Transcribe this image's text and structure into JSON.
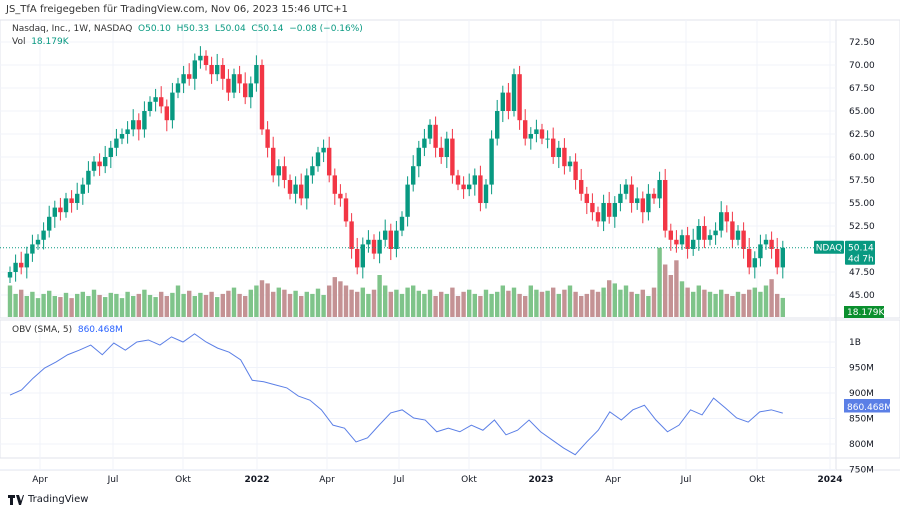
{
  "header": {
    "shared_by": "JS_TfA freigegeben für TradingView.com, Nov 06, 2023 15:46 UTC+1"
  },
  "legend": {
    "symbol": "Nasdaq, Inc., 1W, NASDAQ",
    "o": "O50.10",
    "h": "H50.33",
    "l": "L50.04",
    "c": "C50.14",
    "change": "−0.08 (−0.16%)",
    "vol_label": "Vol",
    "vol_value": "18.179K"
  },
  "obv_legend": {
    "label": "OBV (SMA, 5)",
    "value": "860.468M"
  },
  "footer": {
    "brand": "TradingView"
  },
  "colors": {
    "up": "#089981",
    "down": "#f23645",
    "vol_up": "#7fc48a",
    "vol_down": "#c49294",
    "obv": "#5b7fe6",
    "vol_badge": "#0a8f2e"
  },
  "chart_data": [
    {
      "type": "candlestick",
      "ylim": [
        43.5,
        73.5
      ],
      "price_ticks": [
        "72.50",
        "70.00",
        "67.50",
        "65.00",
        "62.50",
        "60.00",
        "57.50",
        "55.00",
        "52.50",
        "47.50",
        "45.00"
      ],
      "x_ticks": [
        "Apr",
        "Jul",
        "Okt",
        "2022",
        "Apr",
        "Jul",
        "Okt",
        "2023",
        "Apr",
        "Jul",
        "Okt",
        "2024"
      ],
      "closes": [
        47.5,
        48.5,
        48,
        49.5,
        50.5,
        51,
        52,
        53.5,
        54.5,
        54,
        55.5,
        55,
        56,
        57,
        58.5,
        59.5,
        59,
        60,
        61,
        62,
        62.5,
        63,
        64,
        63,
        65,
        66,
        66.5,
        65.5,
        64,
        67,
        68,
        69,
        68.5,
        70.5,
        71,
        70,
        69,
        70,
        68.5,
        67,
        69,
        68,
        66.5,
        68,
        70,
        63,
        61,
        58,
        59,
        57.5,
        56,
        57,
        55.5,
        58,
        59,
        60.5,
        61,
        58,
        56,
        55.5,
        53,
        50,
        48,
        50.5,
        51,
        49.5,
        51,
        52,
        50,
        52,
        53.5,
        57,
        59,
        61,
        62,
        63.5,
        61,
        60,
        62,
        58,
        57,
        56.5,
        57,
        58,
        55,
        57,
        62,
        65,
        67,
        65,
        69,
        64,
        62,
        62.5,
        63,
        62,
        62,
        60,
        61,
        59,
        59.5,
        57.5,
        56,
        55,
        54,
        53,
        55,
        53.5,
        55,
        56,
        57,
        55,
        55.5,
        54,
        56,
        55.5,
        57.5,
        52,
        51,
        50.5,
        51.5,
        50,
        51,
        52.5,
        51,
        51.5,
        52,
        54,
        53,
        51,
        52,
        50,
        48,
        49,
        50.5,
        51,
        50,
        48,
        50.14
      ],
      "volume_k": [
        30,
        22,
        26,
        20,
        24,
        18,
        22,
        25,
        20,
        19,
        23,
        18,
        22,
        24,
        20,
        26,
        21,
        19,
        23,
        22,
        18,
        24,
        20,
        22,
        26,
        21,
        19,
        24,
        20,
        23,
        30,
        22,
        25,
        20,
        23,
        21,
        24,
        19,
        22,
        25,
        28,
        22,
        20,
        26,
        30,
        35,
        32,
        24,
        28,
        26,
        22,
        25,
        20,
        24,
        22,
        27,
        21,
        30,
        38,
        34,
        30,
        26,
        24,
        28,
        22,
        26,
        40,
        30,
        24,
        26,
        22,
        28,
        30,
        25,
        22,
        26,
        20,
        24,
        22,
        28,
        20,
        24,
        26,
        22,
        20,
        26,
        22,
        24,
        30,
        25,
        28,
        22,
        20,
        30,
        26,
        24,
        25,
        28,
        22,
        26,
        30,
        24,
        20,
        22,
        26,
        24,
        28,
        35,
        32,
        26,
        30,
        24,
        22,
        26,
        20,
        28,
        66,
        50,
        40,
        54,
        34,
        28,
        24,
        30,
        26,
        24,
        22,
        26,
        22,
        20,
        24,
        22,
        26,
        28,
        24,
        30,
        36,
        22,
        18.179
      ],
      "last_price_label": "NDAQ",
      "last_price": "50.14",
      "countdown": "4d 7h",
      "vol_badge": "18.179K"
    },
    {
      "type": "line",
      "name": "OBV (SMA, 5)",
      "ylim": [
        740,
        1025
      ],
      "ticks": [
        "1B",
        "950M",
        "900M",
        "850M",
        "800M",
        "750M"
      ],
      "tick_values": [
        1000,
        950,
        900,
        850,
        800,
        750
      ],
      "values_m": [
        896,
        906,
        929,
        949,
        961,
        975,
        984,
        994,
        975,
        998,
        984,
        1000,
        1004,
        994,
        1010,
        1000,
        1016,
        1000,
        988,
        980,
        965,
        925,
        922,
        916,
        910,
        894,
        886,
        867,
        837,
        831,
        804,
        812,
        837,
        861,
        867,
        851,
        847,
        824,
        831,
        824,
        837,
        827,
        847,
        818,
        827,
        847,
        824,
        808,
        792,
        779,
        804,
        827,
        863,
        847,
        867,
        876,
        847,
        824,
        837,
        867,
        857,
        890,
        871,
        851,
        843,
        863,
        867,
        860.468
      ],
      "last_label": "860.468M"
    }
  ]
}
